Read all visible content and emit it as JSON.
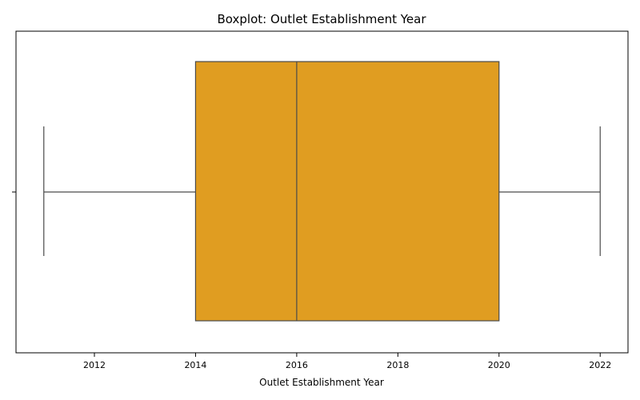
{
  "chart_data": {
    "type": "boxplot",
    "title": "Boxplot: Outlet Establishment Year",
    "xlabel": "Outlet Establishment Year",
    "ylabel": "",
    "orientation": "horizontal",
    "xlim": [
      2010.45,
      2022.55
    ],
    "xticks": [
      2012,
      2014,
      2016,
      2018,
      2020,
      2022
    ],
    "xtick_labels": [
      "2012",
      "2014",
      "2016",
      "2018",
      "2020",
      "2022"
    ],
    "box": {
      "whisker_low": 2011,
      "q1": 2014,
      "median": 2016,
      "q3": 2020,
      "whisker_high": 2022
    },
    "box_color": "#E09D21",
    "line_color": "#4a4a4a",
    "grid": false
  }
}
